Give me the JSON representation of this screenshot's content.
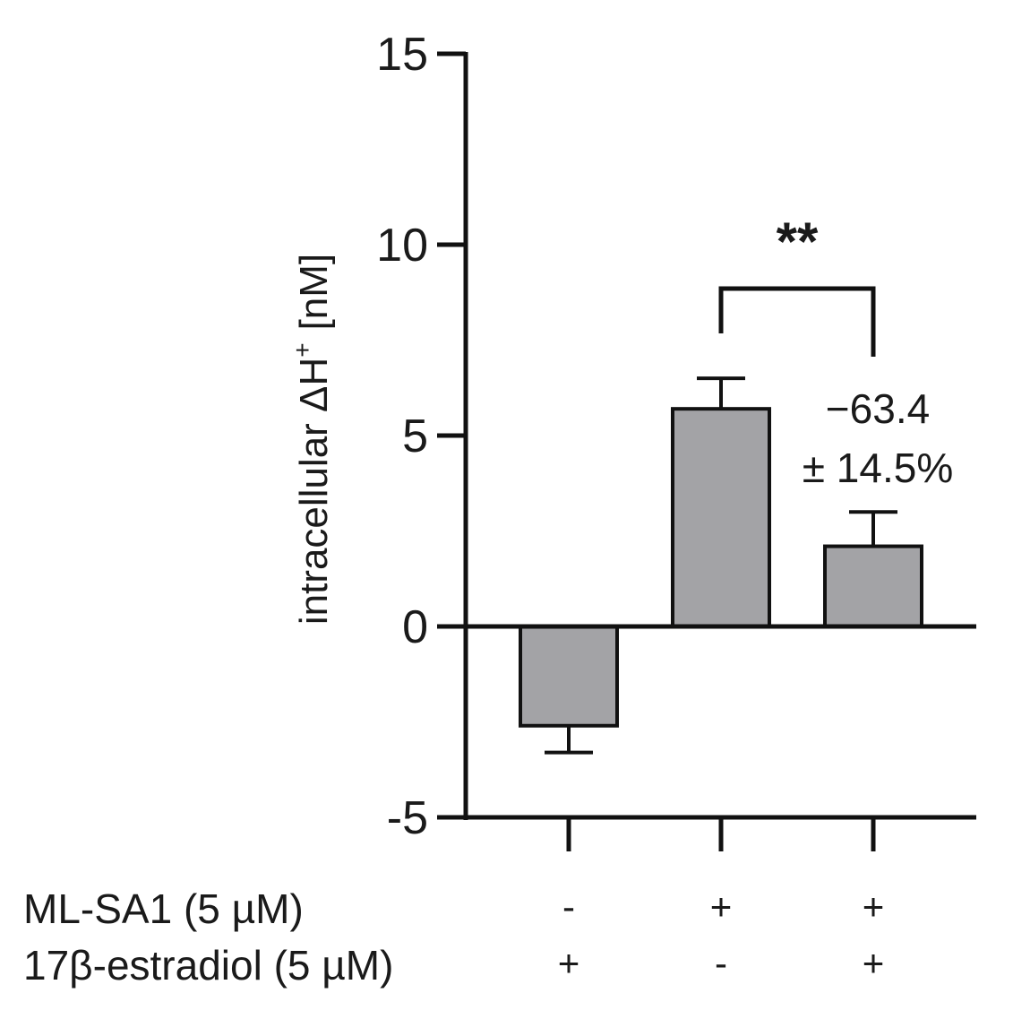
{
  "chart_data": {
    "type": "bar",
    "categories": [
      "ML-SA1 - / 17β-estradiol +",
      "ML-SA1 + / 17β-estradiol -",
      "ML-SA1 + / 17β-estradiol +"
    ],
    "values": [
      -2.6,
      5.7,
      2.1
    ],
    "error": [
      0.7,
      0.8,
      0.9
    ],
    "ylabel": "intracellular ΔH",
    "ylabel_sup": "+",
    "ylabel_unit": "[nM]",
    "ylim": [
      -5,
      15
    ],
    "yticks": [
      15,
      10,
      5,
      0,
      -5
    ],
    "bar_color": "#a3a3a6",
    "conditions": [
      {
        "label": "ML-SA1 (5 µM)",
        "signs": [
          "-",
          "+",
          "+"
        ]
      },
      {
        "label": "17β-estradiol (5 µM)",
        "signs": [
          "+",
          "-",
          "+"
        ]
      }
    ],
    "significance": {
      "label": "**",
      "between": [
        1,
        2
      ]
    },
    "annotation": [
      "−63.4",
      "± 14.5%"
    ]
  }
}
